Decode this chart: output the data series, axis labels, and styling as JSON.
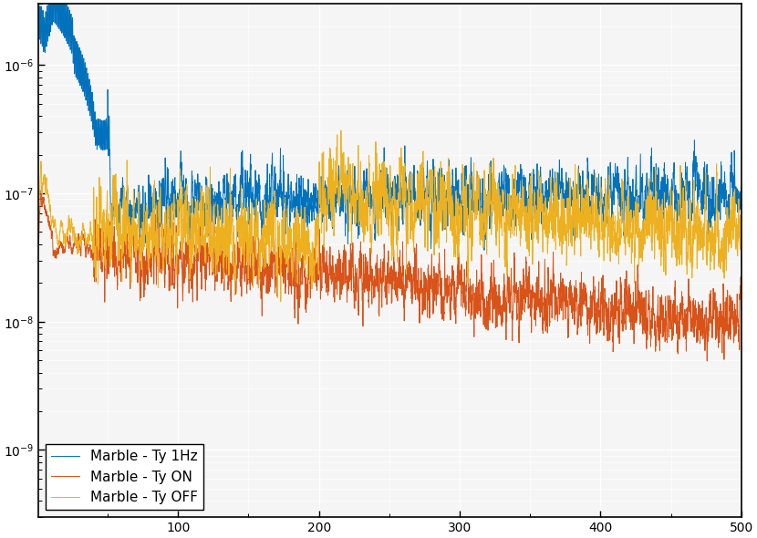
{
  "title": "",
  "xlabel": "",
  "ylabel": "",
  "xlim": [
    1,
    500
  ],
  "background_color": "#ffffff",
  "plot_bg_color": "#f5f5f5",
  "grid_color": "#ffffff",
  "line1_color": "#0072bd",
  "line2_color": "#d95319",
  "line3_color": "#edb120",
  "line1_label": "Marble - Ty 1Hz",
  "line2_label": "Marble - Ty ON",
  "line3_label": "Marble - Ty OFF",
  "legend_loc": "lower left",
  "seed": 42,
  "n_points": 5000,
  "ylim": [
    3e-10,
    3e-06
  ]
}
